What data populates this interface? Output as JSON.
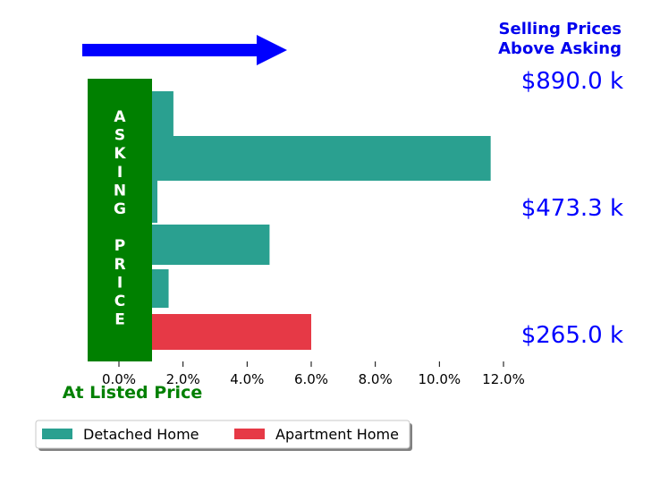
{
  "chart_data": {
    "type": "bar",
    "orientation": "horizontal",
    "title": "",
    "xlabel": "At Listed Price",
    "ylabel": "",
    "xlim": [
      -1.0,
      12.5
    ],
    "x_ticks": [
      0,
      2,
      4,
      6,
      8,
      10,
      12
    ],
    "x_tick_labels": [
      "0.0%",
      "2.0%",
      "4.0%",
      "6.0%",
      "8.0%",
      "10.0%",
      "12.0%"
    ],
    "grid": false,
    "legend_placement": "bottom-left",
    "bars": [
      {
        "series": "Detached Home",
        "value": 1.7
      },
      {
        "series": "Detached Home",
        "value": 11.6
      },
      {
        "series": "Detached Home",
        "value": 1.2
      },
      {
        "series": "Detached Home",
        "value": 4.7
      },
      {
        "series": "Detached Home",
        "value": 1.55
      },
      {
        "series": "Apartment Home",
        "value": 6.0
      }
    ],
    "series": [
      {
        "name": "Detached Home",
        "color": "#2aa090"
      },
      {
        "name": "Apartment Home",
        "color": "#e63946"
      }
    ],
    "annotations": {
      "above_title_line1": "Selling Prices",
      "above_title_line2": "Above Asking",
      "price_labels": [
        "$890.0 k",
        "$473.3 k",
        "$265.0 k"
      ],
      "asking_price_letters": [
        "A",
        "S",
        "K",
        "I",
        "N",
        "G",
        "",
        "P",
        "R",
        "I",
        "C",
        "E"
      ],
      "asking_box_color": "#008000",
      "arrow_color": "#0000ff"
    }
  }
}
